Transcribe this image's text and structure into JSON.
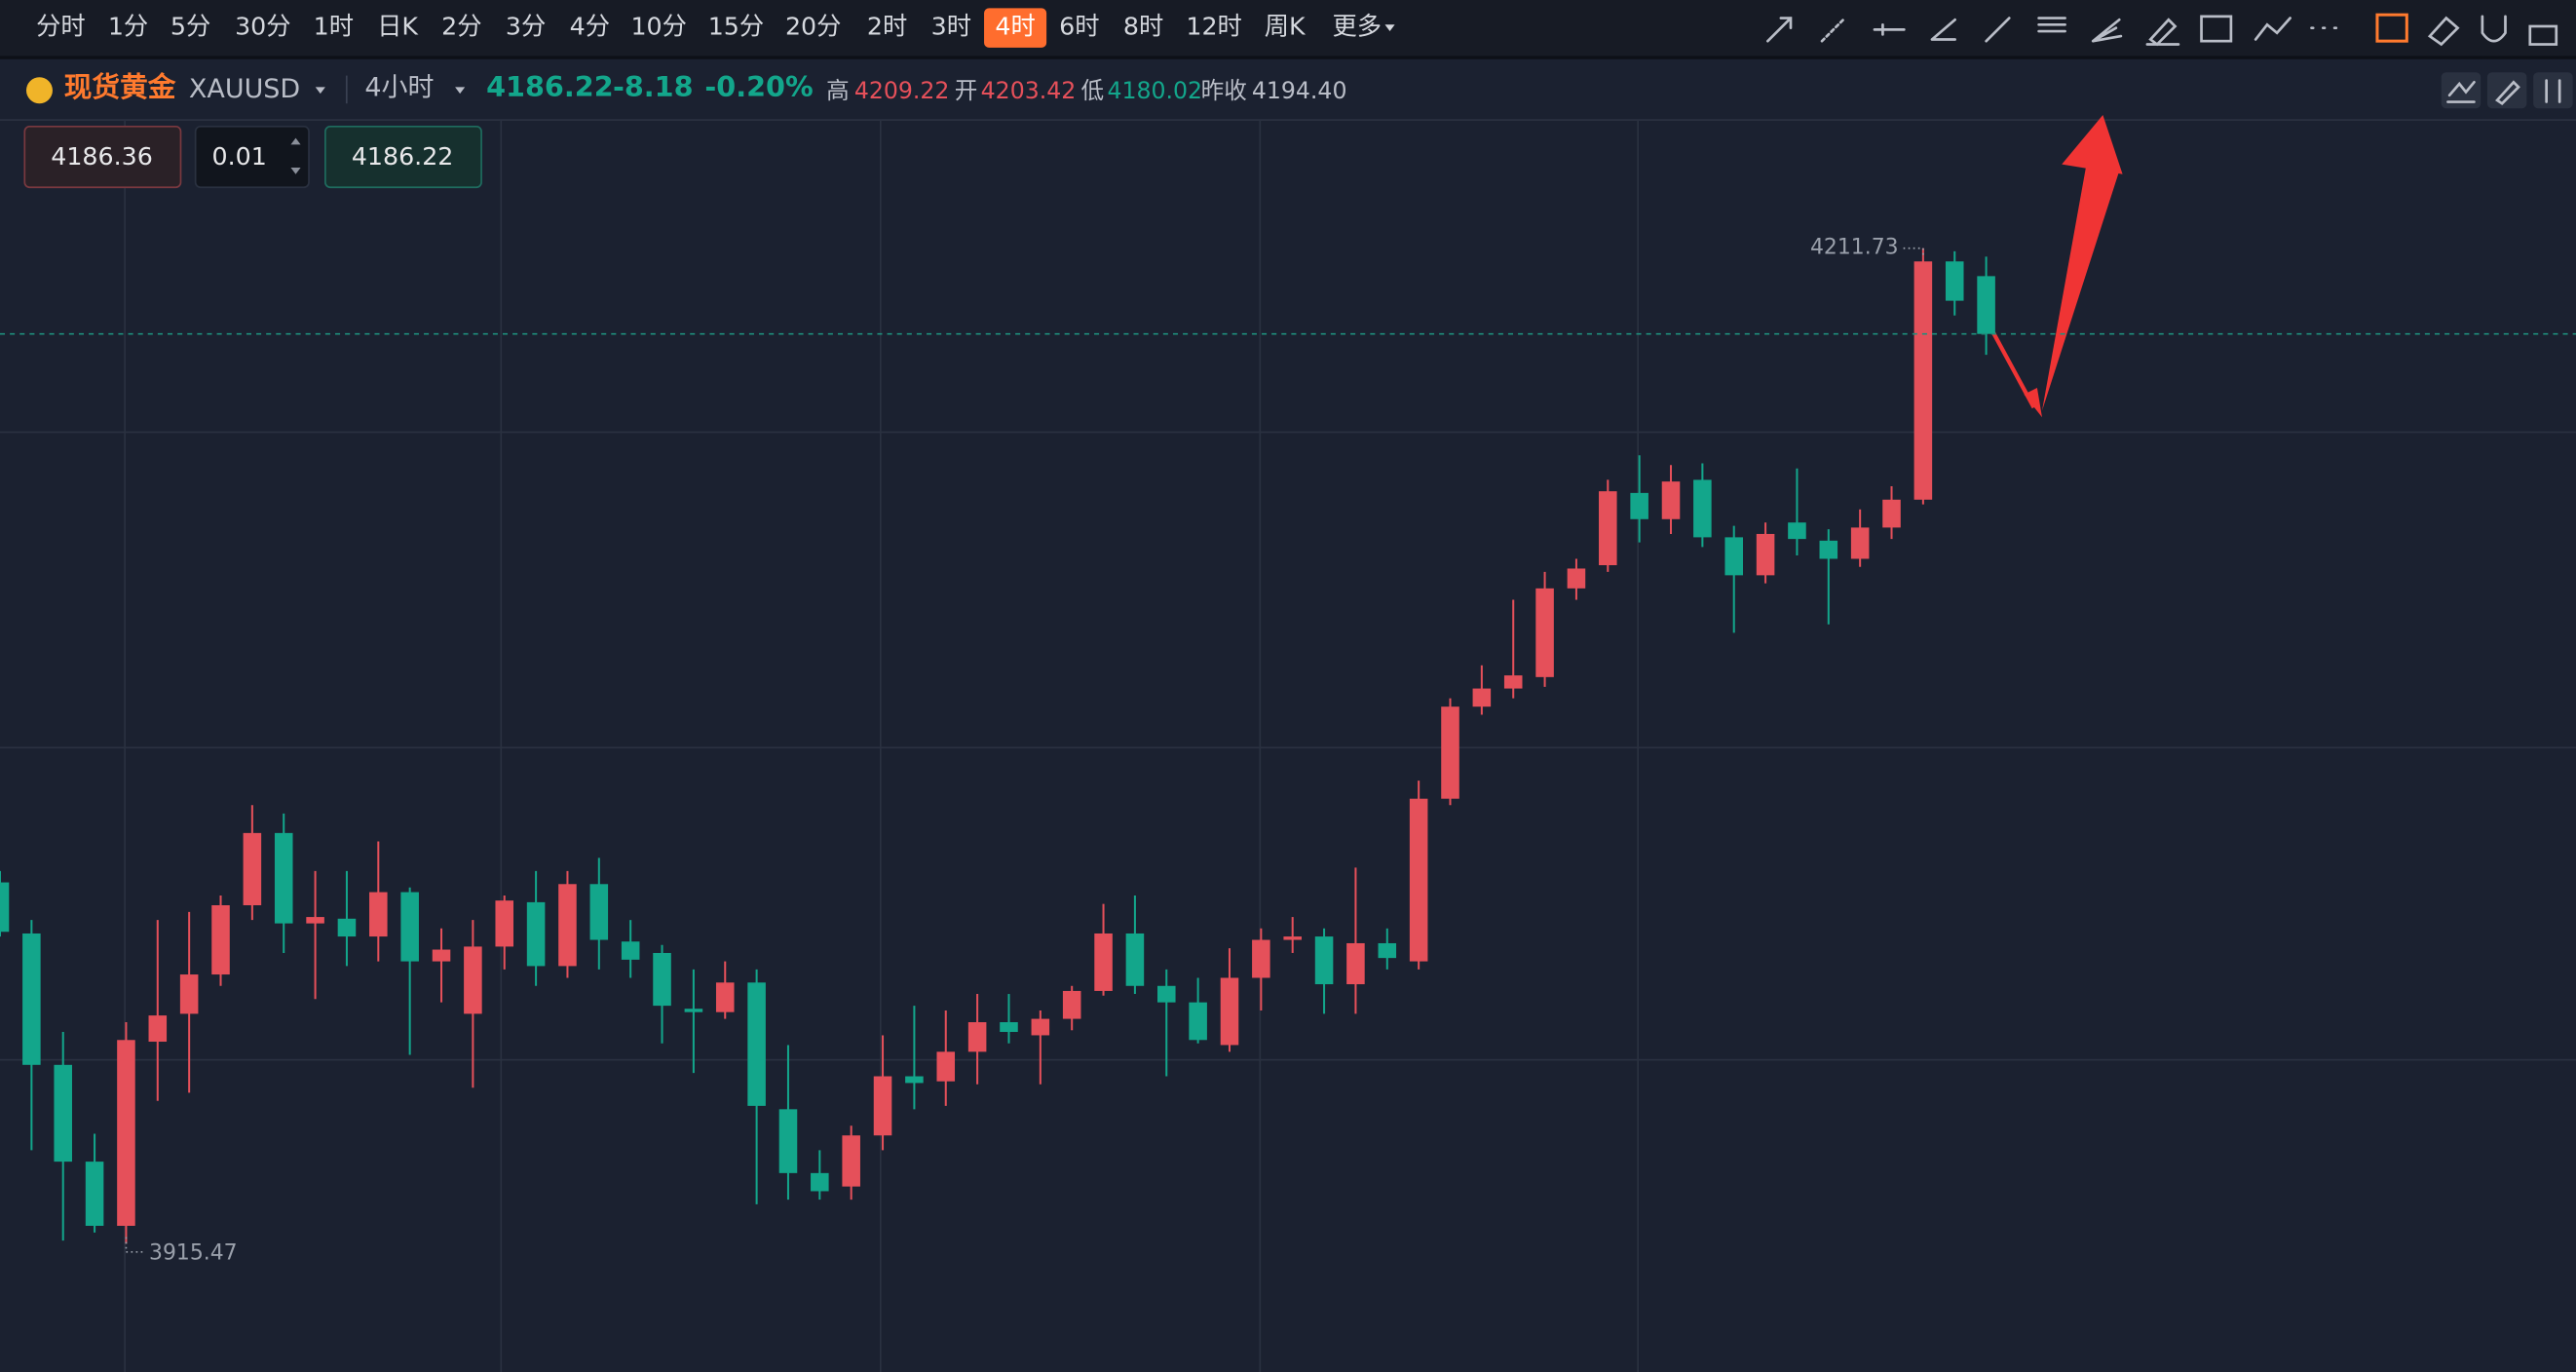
{
  "toolbar": {
    "intervals": [
      "分时",
      "1分",
      "5分",
      "30分",
      "1时",
      "日K",
      "2分",
      "3分",
      "4分",
      "10分",
      "15分",
      "20分",
      "2时",
      "3时",
      "4时",
      "6时",
      "8时",
      "12时",
      "周K"
    ],
    "active": 14,
    "more": "更多"
  },
  "header": {
    "name": "现货黄金",
    "symbol": "XAUUSD",
    "period": "4小时",
    "change": "-8.18",
    "change_pct": "-0.20%",
    "high_label": "高",
    "open_label": "开",
    "low_label": "低",
    "prev_label": "昨收",
    "prev_close": "4194.40"
  },
  "order": {
    "ask": "4186.36",
    "qty": "0.01"
  },
  "chart_data": {
    "type": "candlestick",
    "up_color": "#e5505a",
    "down_color": "#13a68b",
    "ylim": [
      3877.3,
      4249.9
    ],
    "open": [
      4023.0,
      4007.8,
      3968.7,
      3939.9,
      3920.8,
      3975.6,
      3983.9,
      3995.6,
      4016.2,
      4037.7,
      4010.8,
      4012.2,
      4006.9,
      4020.1,
      3999.5,
      3983.9,
      4003.9,
      4017.1,
      3998.1,
      4022.5,
      4005.4,
      4002.0,
      3985.4,
      3984.4,
      3993.2,
      3955.5,
      3936.5,
      3932.5,
      3947.7,
      3965.3,
      3963.8,
      3972.6,
      3981.4,
      3977.5,
      3982.4,
      3990.7,
      4007.8,
      3992.2,
      3987.3,
      3974.6,
      3994.6,
      4005.9,
      4006.9,
      3992.7,
      4004.9,
      3999.5,
      4047.9,
      4075.3,
      4080.7,
      4084.1,
      4110.5,
      4117.4,
      4138.9,
      4131.1,
      4142.8,
      4125.7,
      4114.4,
      4130.1,
      4124.7,
      4119.3,
      4128.6,
      4136.9,
      4207.8,
      4203.42
    ],
    "high": [
      4026.4,
      4011.8,
      3978.5,
      3948.2,
      3981.4,
      4011.8,
      4014.2,
      4019.1,
      4046.0,
      4043.5,
      4026.4,
      4026.4,
      4035.2,
      4021.5,
      4009.3,
      4011.8,
      4019.1,
      4026.4,
      4026.4,
      4030.3,
      4011.8,
      4004.4,
      3997.1,
      3999.5,
      3997.1,
      3974.6,
      3943.3,
      3950.6,
      3977.5,
      3986.3,
      3984.9,
      3989.8,
      3989.8,
      3984.9,
      3992.2,
      4016.6,
      4019.1,
      3997.1,
      3994.6,
      4003.4,
      4009.3,
      4012.7,
      4009.3,
      4027.4,
      4009.3,
      4053.3,
      4077.8,
      4087.6,
      4107.1,
      4115.4,
      4119.3,
      4142.8,
      4150.1,
      4147.2,
      4147.7,
      4129.1,
      4130.1,
      4146.2,
      4128.1,
      4134.0,
      4140.9,
      4211.73,
      4210.8,
      4209.22
    ],
    "low": [
      4006.9,
      3943.3,
      3916.4,
      3918.8,
      3915.47,
      3958.0,
      3960.4,
      3992.2,
      4011.8,
      4002.0,
      3988.3,
      3998.1,
      3999.5,
      3971.7,
      3987.3,
      3961.9,
      3997.1,
      3992.2,
      3994.6,
      3997.1,
      3994.6,
      3975.1,
      3966.3,
      3982.4,
      3927.2,
      3928.6,
      3928.6,
      3928.6,
      3943.3,
      3955.5,
      3956.5,
      3962.9,
      3975.1,
      3962.9,
      3979.0,
      3989.3,
      3989.8,
      3965.3,
      3975.1,
      3972.6,
      3984.9,
      4002.0,
      3983.9,
      3983.9,
      3997.1,
      3997.1,
      4046.0,
      4072.9,
      4077.8,
      4081.2,
      4107.1,
      4115.4,
      4124.2,
      4126.7,
      4122.8,
      4097.3,
      4112.0,
      4120.3,
      4099.8,
      4116.9,
      4125.2,
      4135.5,
      4191.7,
      4180.02
    ],
    "close": [
      4008.3,
      3968.7,
      3939.9,
      3920.8,
      3976.1,
      3983.4,
      3995.6,
      4016.2,
      4037.7,
      4010.8,
      4012.7,
      4006.9,
      4020.1,
      3999.5,
      4003.0,
      4003.9,
      4017.6,
      3998.1,
      4022.5,
      4005.9,
      4000.0,
      3986.3,
      3984.4,
      3993.2,
      3956.5,
      3936.5,
      3931.1,
      3947.7,
      3965.3,
      3963.3,
      3972.6,
      3981.4,
      3978.5,
      3982.4,
      3990.7,
      4007.8,
      3992.2,
      3987.3,
      3976.1,
      3994.6,
      4005.9,
      4006.9,
      3992.7,
      4004.9,
      4000.5,
      4047.9,
      4075.3,
      4080.7,
      4084.6,
      4110.5,
      4116.4,
      4139.4,
      4131.1,
      4142.3,
      4125.7,
      4114.4,
      4126.7,
      4125.2,
      4119.3,
      4128.6,
      4136.9,
      4207.8,
      4196.1,
      4186.22
    ]
  }
}
